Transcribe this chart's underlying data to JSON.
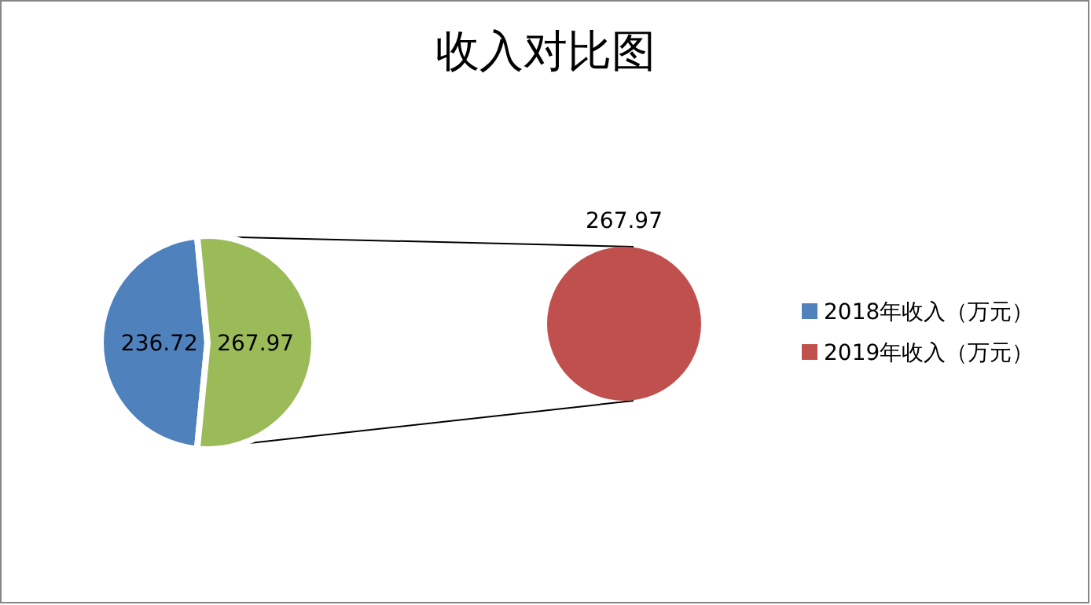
{
  "chart_data": [
    {
      "type": "pie",
      "title": "收入对比图",
      "categories": [
        "2018年收入（万元）",
        null
      ],
      "values": [
        236.72,
        267.97
      ],
      "colors": [
        "#4f81bd",
        "#9bbb59"
      ],
      "data_labels": true,
      "legend": "right"
    },
    {
      "type": "pie",
      "categories": [
        "2019年收入（万元）"
      ],
      "values": [
        267.97
      ],
      "colors": [
        "#c0504d"
      ],
      "data_labels": true,
      "legend": "right"
    }
  ]
}
